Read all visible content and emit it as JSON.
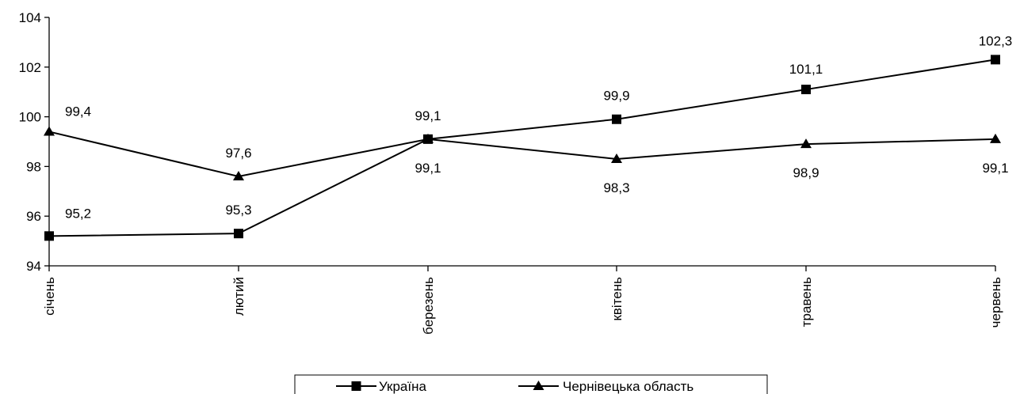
{
  "chart_data": {
    "type": "line",
    "categories": [
      "січень",
      "лютий",
      "березень",
      "квітень",
      "травень",
      "червень"
    ],
    "series": [
      {
        "name": "Україна",
        "marker": "square",
        "values": [
          95.2,
          95.3,
          99.1,
          99.9,
          101.1,
          102.3
        ],
        "labels": [
          "95,2",
          "95,3",
          "99,1",
          "99,9",
          "101,1",
          "102,3"
        ]
      },
      {
        "name": "Чернівецька область",
        "marker": "triangle",
        "values": [
          99.4,
          97.6,
          99.1,
          98.3,
          98.9,
          99.1
        ],
        "labels": [
          "99,4",
          "97,6",
          "99,1",
          "98,3",
          "98,9",
          "99,1"
        ]
      }
    ],
    "yticks": [
      "94",
      "96",
      "98",
      "100",
      "102",
      "104"
    ],
    "ylim": [
      94,
      104
    ],
    "title": "",
    "xlabel": "",
    "ylabel": "",
    "grid": false,
    "legend_position": "bottom-center",
    "line_color": "#000000"
  }
}
